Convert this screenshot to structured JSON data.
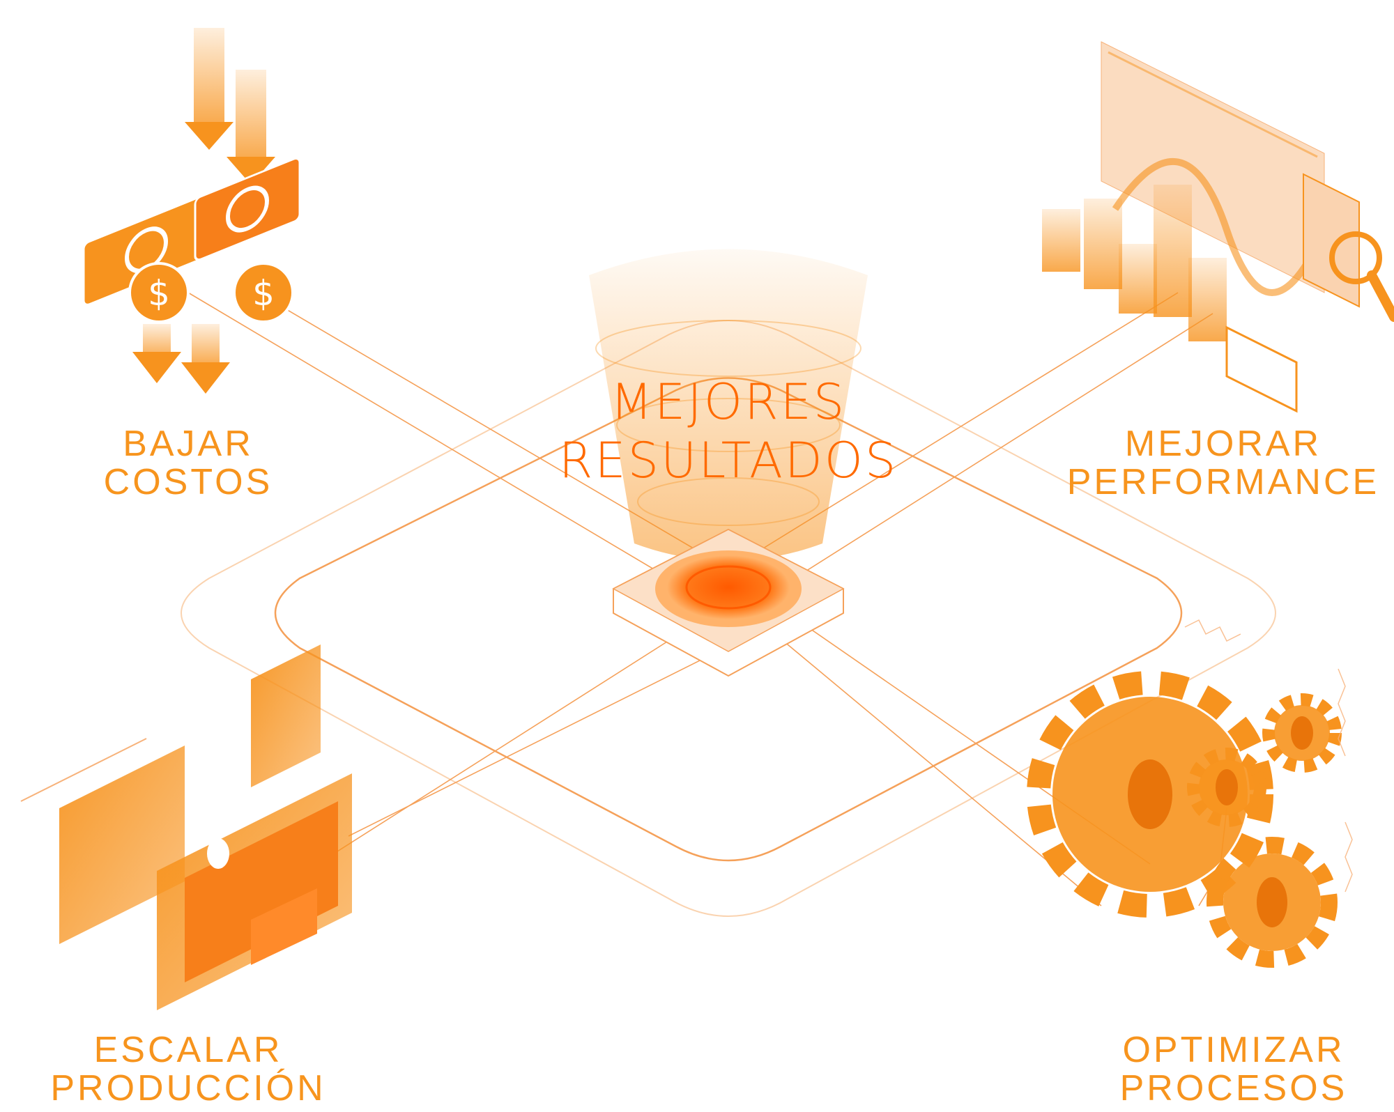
{
  "center": {
    "line1": "MEJORES",
    "line2": "RESULTADOS"
  },
  "quadrants": {
    "top_left": {
      "line1": "BAJAR",
      "line2": "COSTOS",
      "icon": "money-bills-icon"
    },
    "top_right": {
      "line1": "MEJORAR",
      "line2": "PERFORMANCE",
      "icon": "analytics-dashboard-icon"
    },
    "bottom_left": {
      "line1": "ESCALAR",
      "line2": "PRODUCCIÓN",
      "icon": "media-screens-icon"
    },
    "bottom_right": {
      "line1": "OPTIMIZAR",
      "line2": "PROCESOS",
      "icon": "gears-icon"
    }
  },
  "colors": {
    "accent": "#F7931E",
    "accent_deep": "#FF6A00",
    "label": "#F7941D",
    "line": "#F5A15A",
    "pale": "#FAD3B0"
  }
}
